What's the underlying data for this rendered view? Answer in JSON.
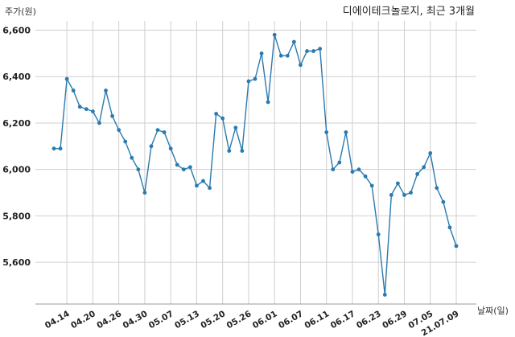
{
  "chart_data": {
    "type": "line",
    "title": "디에이테크놀로지, 최근 3개월",
    "ylabel": "주가(원)",
    "xlabel": "날짜(일)",
    "ylim": [
      5420,
      6640
    ],
    "yticks": [
      5600,
      5800,
      6000,
      6200,
      6400,
      6600
    ],
    "ytick_labels": [
      "5,600",
      "5,800",
      "6,000",
      "6,200",
      "6,400",
      "6,600"
    ],
    "grid": true,
    "x_tick_labels": [
      {
        "label": "04.14",
        "index": 2
      },
      {
        "label": "04.20",
        "index": 6
      },
      {
        "label": "04.26",
        "index": 10
      },
      {
        "label": "04.30",
        "index": 14
      },
      {
        "label": "05.07",
        "index": 18
      },
      {
        "label": "05.13",
        "index": 22
      },
      {
        "label": "05.20",
        "index": 26
      },
      {
        "label": "05.26",
        "index": 30
      },
      {
        "label": "06.01",
        "index": 34
      },
      {
        "label": "06.07",
        "index": 38
      },
      {
        "label": "06.11",
        "index": 42
      },
      {
        "label": "06.17",
        "index": 46
      },
      {
        "label": "06.23",
        "index": 50
      },
      {
        "label": "06.29",
        "index": 54
      },
      {
        "label": "07.05",
        "index": 58
      },
      {
        "label": "21.07.09",
        "index": 62
      }
    ],
    "series": [
      {
        "color": "#2a7ab0",
        "values": [
          6090,
          6090,
          6390,
          6340,
          6270,
          6260,
          6250,
          6200,
          6340,
          6230,
          6170,
          6120,
          6050,
          6000,
          5900,
          6100,
          6170,
          6160,
          6090,
          6020,
          6000,
          6010,
          5930,
          5950,
          5920,
          6240,
          6220,
          6080,
          6180,
          6080,
          6380,
          6390,
          6500,
          6290,
          6580,
          6490,
          6490,
          6550,
          6450,
          6510,
          6510,
          6520,
          6160,
          6000,
          6030,
          6160,
          5990,
          6000,
          5970,
          5930,
          5720,
          5460,
          5890,
          5940,
          5890,
          5900,
          5980,
          6010,
          6070,
          5920,
          5860,
          5750,
          5670
        ]
      }
    ]
  }
}
